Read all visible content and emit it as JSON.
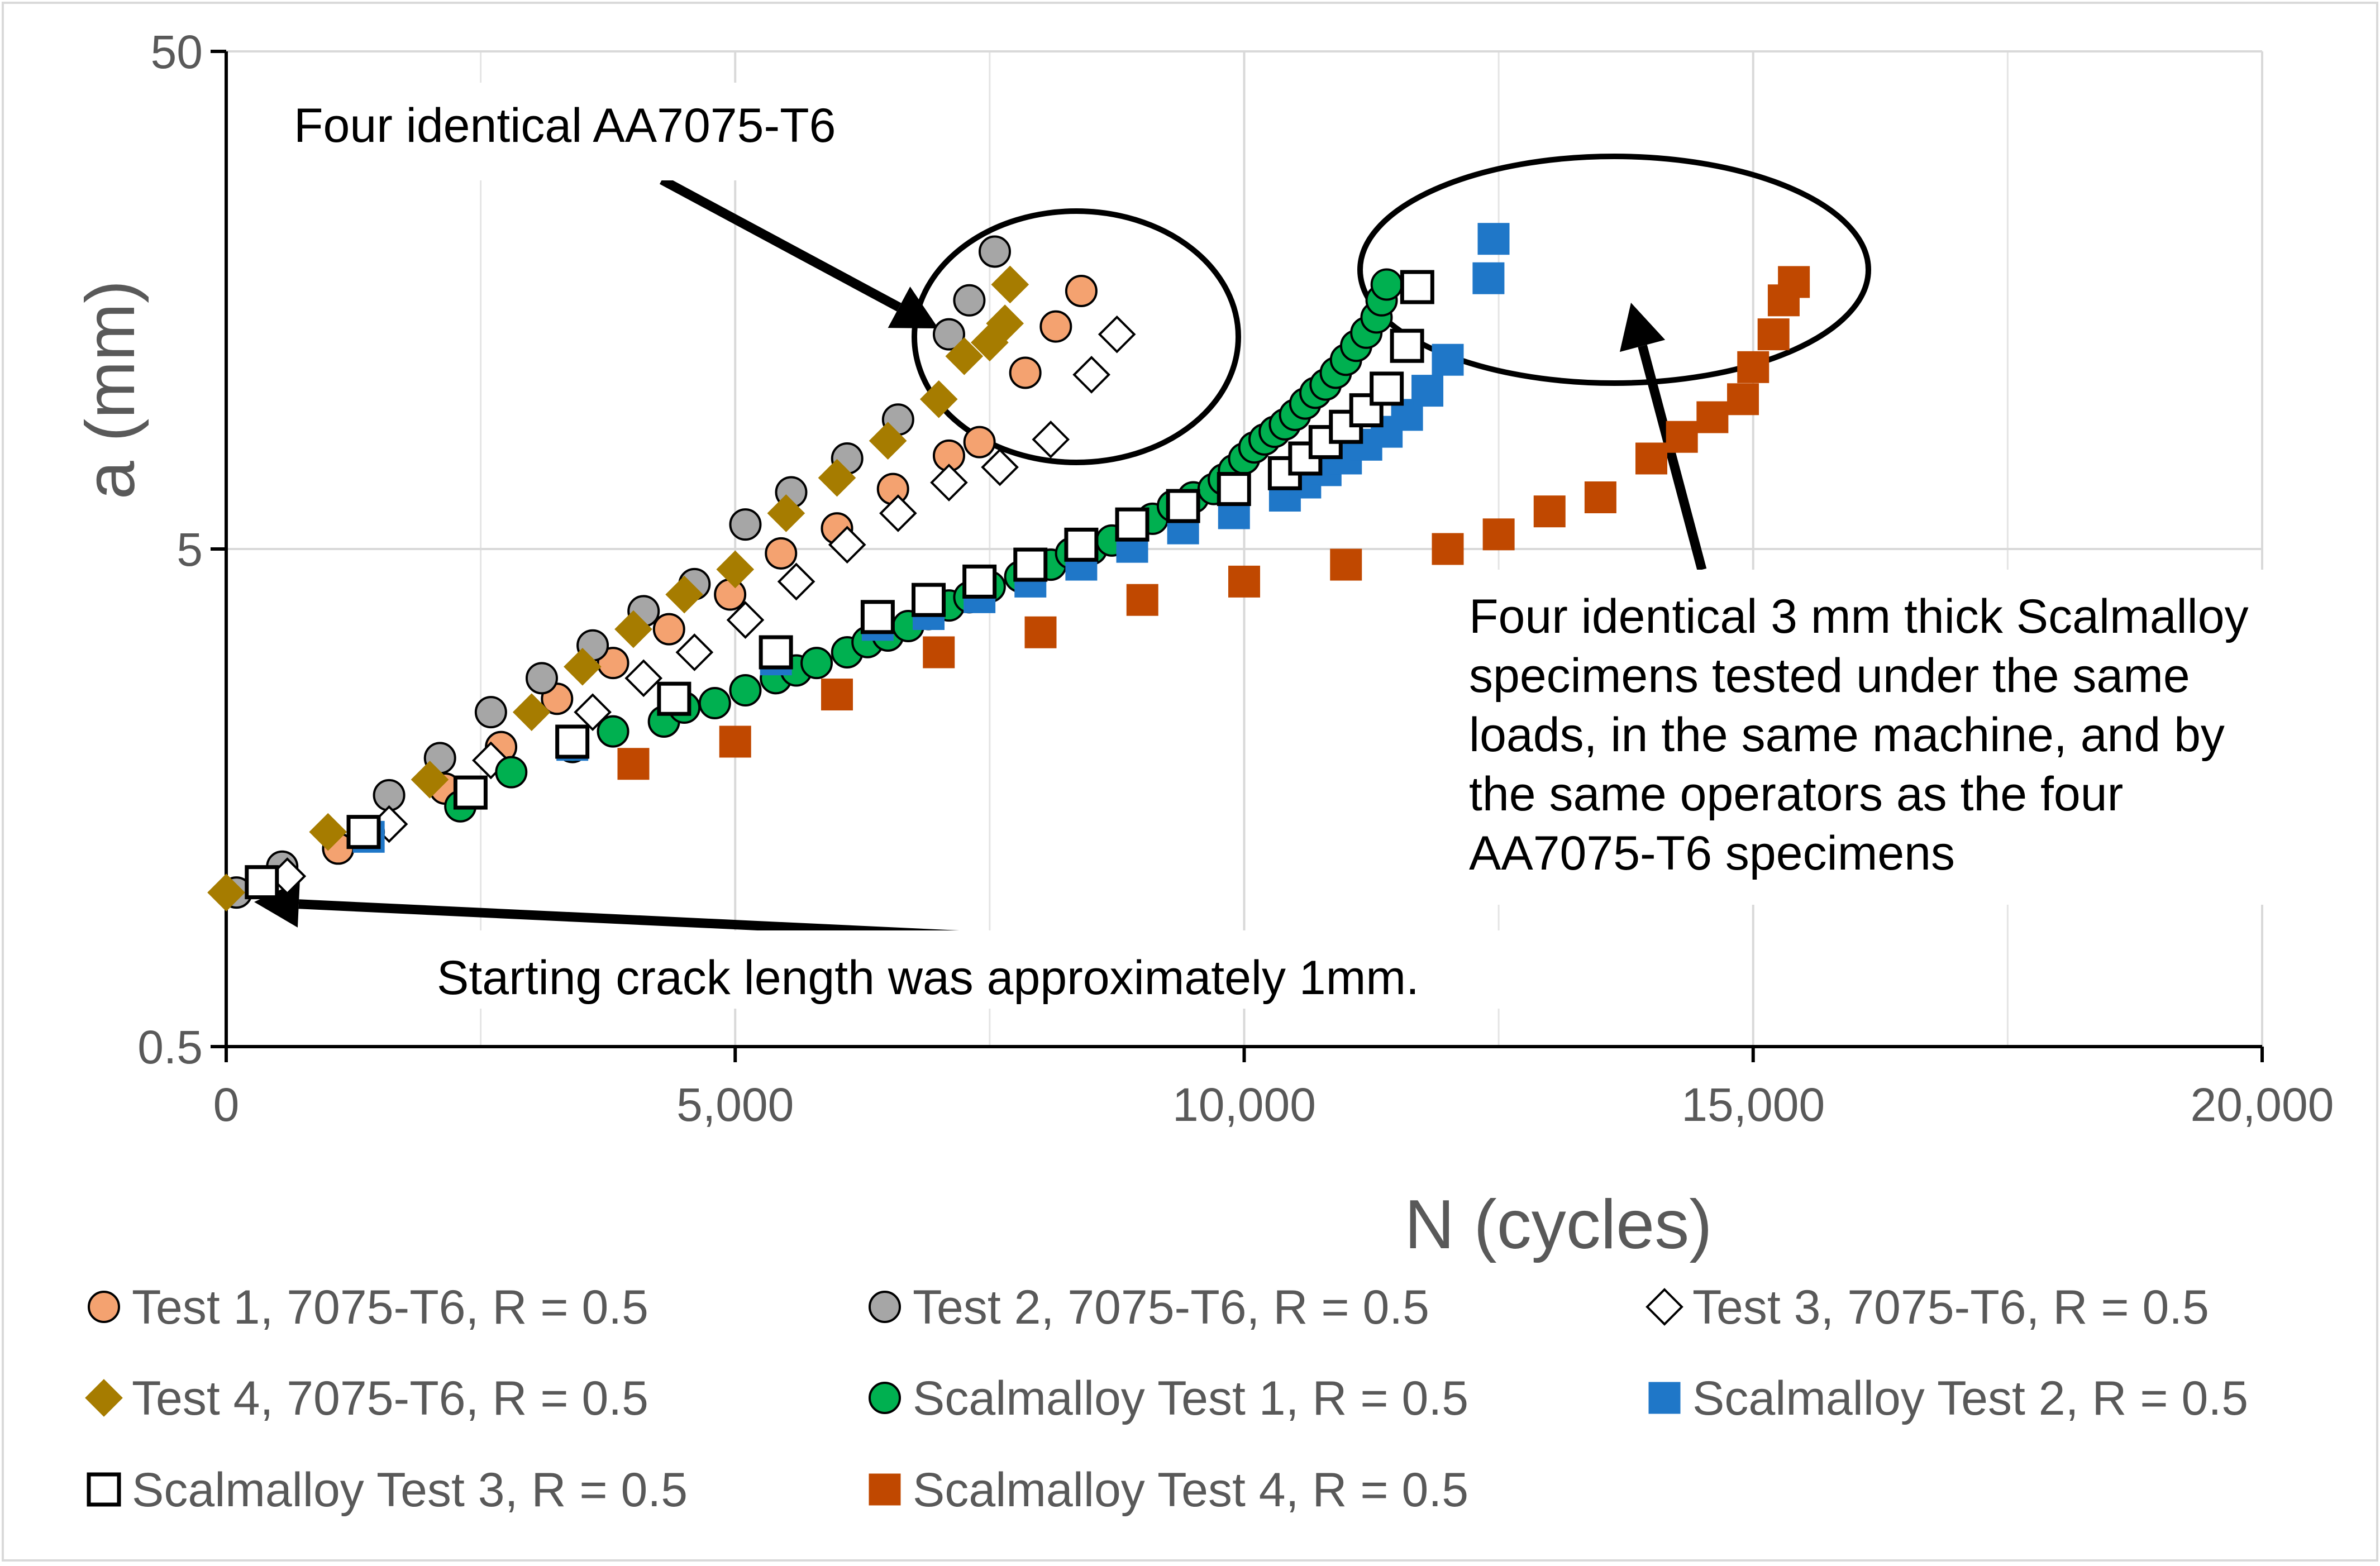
{
  "chart_data": {
    "type": "scatter",
    "xlabel": "N (cycles)",
    "ylabel": "a (mm)",
    "x_scale": "linear",
    "y_scale": "log",
    "xlim": [
      0,
      20000
    ],
    "ylim": [
      0.5,
      50
    ],
    "grid": true,
    "x_ticks": [
      {
        "value": 0,
        "label": "0"
      },
      {
        "value": 5000,
        "label": "5,000"
      },
      {
        "value": 10000,
        "label": "10,000"
      },
      {
        "value": 15000,
        "label": "15,000"
      },
      {
        "value": 20000,
        "label": "20,000"
      }
    ],
    "y_ticks": [
      {
        "value": 0.5,
        "label": "0.5"
      },
      {
        "value": 5,
        "label": "5"
      },
      {
        "value": 50,
        "label": "50"
      }
    ],
    "legend_position": "bottom",
    "series": [
      {
        "name": "Test 1, 7075-T6, R = 0.5",
        "marker": "circle",
        "fill": "#F4A270",
        "stroke": "#000000",
        "x": [
          1100,
          2150,
          2700,
          3250,
          3800,
          4350,
          4950,
          5450,
          6000,
          6550,
          7100,
          7400,
          7850,
          8150,
          8400
        ],
        "y": [
          1.25,
          1.65,
          2.0,
          2.5,
          2.95,
          3.45,
          4.05,
          4.9,
          5.5,
          6.6,
          7.7,
          8.2,
          11.3,
          14.0,
          16.5
        ]
      },
      {
        "name": "Test 2, 7075-T6, R = 0.5",
        "marker": "circle",
        "fill": "#A6A6A6",
        "stroke": "#000000",
        "x": [
          100,
          550,
          1600,
          2100,
          2600,
          3100,
          3600,
          4100,
          4600,
          5100,
          5550,
          6100,
          6600,
          7100,
          7300,
          7550
        ],
        "y": [
          1.02,
          1.15,
          1.6,
          1.9,
          2.35,
          2.75,
          3.2,
          3.75,
          4.25,
          5.6,
          6.5,
          7.6,
          9.1,
          13.5,
          15.8,
          19.8
        ]
      },
      {
        "name": "Test 3, 7075-T6, R = 0.5",
        "marker": "diamond",
        "fill": "#FFFFFF",
        "stroke": "#000000",
        "x": [
          600,
          1600,
          2600,
          3600,
          4100,
          4600,
          5100,
          5600,
          6100,
          6600,
          7100,
          7600,
          8100,
          8500,
          8750
        ],
        "y": [
          1.1,
          1.4,
          1.88,
          2.35,
          2.75,
          3.1,
          3.6,
          4.3,
          5.1,
          5.9,
          6.8,
          7.3,
          8.3,
          11.2,
          13.5
        ]
      },
      {
        "name": "Test 4, 7075-T6, R = 0.5",
        "marker": "diamond",
        "fill": "#A67C00",
        "stroke": "#A67C00",
        "x": [
          0,
          1000,
          2000,
          3000,
          3500,
          4000,
          4500,
          5000,
          5500,
          6000,
          6500,
          7000,
          7250,
          7500,
          7650,
          7700
        ],
        "y": [
          1.02,
          1.35,
          1.72,
          2.35,
          2.9,
          3.45,
          4.05,
          4.55,
          5.9,
          6.95,
          8.25,
          10.0,
          12.2,
          13.0,
          14.2,
          17.0
        ]
      },
      {
        "name": "Scalmalloy Test 1, R = 0.5",
        "marker": "circle",
        "fill": "#00B050",
        "stroke": "#000000",
        "x": [
          1400,
          2300,
          2800,
          3400,
          3800,
          4300,
          4500,
          4800,
          5100,
          5400,
          5600,
          5800,
          6100,
          6300,
          6500,
          6700,
          6900,
          7100,
          7300,
          7500,
          7800,
          8100,
          8300,
          8500,
          8700,
          8900,
          9100,
          9300,
          9500,
          9700,
          9800,
          9900,
          10000,
          10100,
          10200,
          10300,
          10400,
          10500,
          10600,
          10700,
          10800,
          10900,
          11000,
          11100,
          11200,
          11300,
          11350,
          11400
        ],
        "y": [
          1.35,
          1.52,
          1.78,
          2.0,
          2.15,
          2.25,
          2.4,
          2.45,
          2.6,
          2.75,
          2.85,
          2.95,
          3.1,
          3.25,
          3.35,
          3.5,
          3.7,
          3.85,
          4.0,
          4.2,
          4.4,
          4.65,
          4.9,
          5.0,
          5.2,
          5.5,
          5.75,
          6.1,
          6.35,
          6.6,
          6.9,
          7.2,
          7.6,
          8.0,
          8.3,
          8.6,
          8.9,
          9.3,
          9.8,
          10.3,
          10.7,
          11.3,
          12.0,
          12.8,
          13.6,
          14.6,
          15.8,
          17.0
        ]
      },
      {
        "name": "Scalmalloy Test 2, R = 0.5",
        "marker": "square",
        "fill": "#1F77C8",
        "stroke": "#1F77C8",
        "x": [
          350,
          1400,
          2400,
          3400,
          4400,
          5400,
          6400,
          6900,
          7400,
          7900,
          8400,
          8900,
          9400,
          9900,
          10400,
          10600,
          10800,
          11000,
          11200,
          11400,
          11600,
          11800,
          12000,
          12400,
          12450
        ],
        "y": [
          1.07,
          1.32,
          1.62,
          2.02,
          2.49,
          3.0,
          3.52,
          3.7,
          4.0,
          4.3,
          4.65,
          5.05,
          5.5,
          5.9,
          6.4,
          6.8,
          7.2,
          7.6,
          8.1,
          8.6,
          9.3,
          10.4,
          12.0,
          17.5,
          21.0
        ]
      },
      {
        "name": "Scalmalloy Test 3, R = 0.5",
        "marker": "square",
        "fill": "#FFFFFF",
        "stroke": "#000000",
        "x": [
          350,
          1350,
          2400,
          3400,
          4400,
          5400,
          6400,
          6900,
          7400,
          7900,
          8400,
          8900,
          9400,
          9900,
          10400,
          10600,
          10800,
          11000,
          11200,
          11400,
          11600,
          11700
        ],
        "y": [
          1.07,
          1.35,
          1.62,
          2.05,
          2.5,
          3.1,
          3.65,
          3.95,
          4.3,
          4.65,
          5.1,
          5.6,
          6.1,
          6.6,
          7.1,
          7.6,
          8.2,
          8.8,
          9.5,
          10.5,
          12.8,
          16.8
        ]
      },
      {
        "name": "Scalmalloy Test 4, R = 0.5",
        "marker": "square",
        "fill": "#C04800",
        "stroke": "#C04800",
        "x": [
          4000,
          5000,
          6000,
          7000,
          8000,
          9000,
          10000,
          11000,
          12000,
          12500,
          13000,
          13500,
          14000,
          14300,
          14600,
          14900,
          15000,
          15200,
          15300,
          15400
        ],
        "y": [
          1.85,
          2.05,
          2.55,
          3.1,
          3.4,
          3.95,
          4.3,
          4.65,
          5.0,
          5.35,
          5.95,
          6.35,
          7.6,
          8.4,
          9.2,
          10.0,
          11.6,
          13.5,
          15.8,
          17.2
        ]
      }
    ],
    "annotations": [
      {
        "text": "Four identical AA7075-T6"
      },
      {
        "lines": [
          "Four identical 3 mm thick Scalmalloy",
          "specimens tested under the same",
          "loads, in the same machine, and by",
          "the same operators as the four",
          "AA7075-T6 specimens"
        ]
      },
      {
        "text": "Starting crack length was approximately 1mm."
      }
    ]
  }
}
